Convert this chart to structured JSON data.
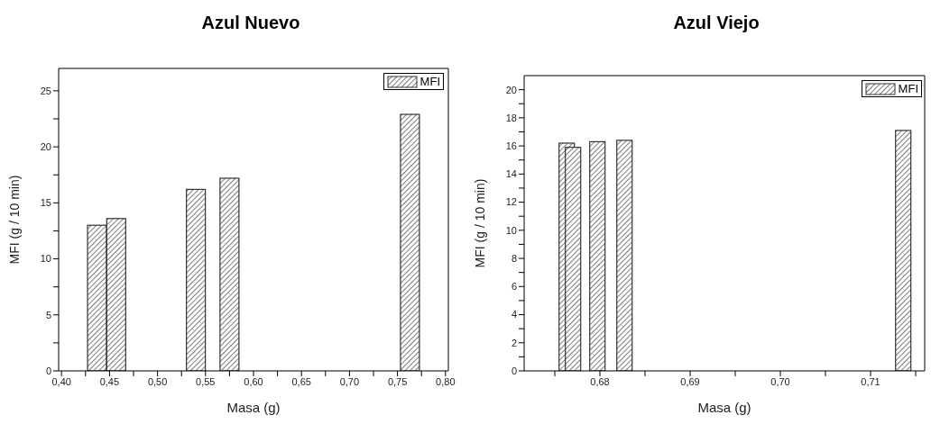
{
  "chart_data": [
    {
      "type": "bar",
      "title": "Azul Nuevo",
      "xlabel": "Masa (g)",
      "ylabel": "MFI (g / 10 min)",
      "x": [
        0.437,
        0.457,
        0.54,
        0.575,
        0.763
      ],
      "series": [
        {
          "name": "MFI",
          "color": "#333333",
          "values": [
            13.0,
            13.6,
            16.2,
            17.2,
            22.9
          ]
        }
      ],
      "xlim": [
        0.397,
        0.803
      ],
      "xticks": [
        {
          "value": 0.4,
          "label": "0,40"
        },
        {
          "value": 0.425,
          "label": null
        },
        {
          "value": 0.45,
          "label": "0,45"
        },
        {
          "value": 0.475,
          "label": null
        },
        {
          "value": 0.5,
          "label": "0,50"
        },
        {
          "value": 0.525,
          "label": null
        },
        {
          "value": 0.55,
          "label": "0,55"
        },
        {
          "value": 0.575,
          "label": null
        },
        {
          "value": 0.6,
          "label": "0,60"
        },
        {
          "value": 0.625,
          "label": null
        },
        {
          "value": 0.65,
          "label": "0,65"
        },
        {
          "value": 0.675,
          "label": null
        },
        {
          "value": 0.7,
          "label": "0,70"
        },
        {
          "value": 0.725,
          "label": null
        },
        {
          "value": 0.75,
          "label": "0,75"
        },
        {
          "value": 0.775,
          "label": null
        },
        {
          "value": 0.8,
          "label": "0,80"
        }
      ],
      "ylim": [
        0,
        27
      ],
      "yticks": [
        0,
        {
          "value": 2.5,
          "label": null
        },
        5,
        {
          "value": 7.5,
          "label": null
        },
        10,
        {
          "value": 12.5,
          "label": null
        },
        15,
        {
          "value": 17.5,
          "label": null
        },
        20,
        {
          "value": 22.5,
          "label": null
        },
        25
      ],
      "legend": "top right"
    },
    {
      "type": "bar",
      "title": "Azul Viejo",
      "xlabel": "Masa (g)",
      "ylabel": "MFI (g / 10 min)",
      "x": [
        0.6763,
        0.677,
        0.6797,
        0.6827,
        0.7136
      ],
      "series": [
        {
          "name": "MFI",
          "color": "#333333",
          "values": [
            16.2,
            15.9,
            16.3,
            16.4,
            17.1
          ]
        }
      ],
      "xlim": [
        0.6716,
        0.716
      ],
      "xticks": [
        {
          "value": 0.675,
          "label": null
        },
        {
          "value": 0.68,
          "label": "0,68"
        },
        {
          "value": 0.685,
          "label": null
        },
        {
          "value": 0.69,
          "label": "0,69"
        },
        {
          "value": 0.695,
          "label": null
        },
        {
          "value": 0.7,
          "label": "0,70"
        },
        {
          "value": 0.705,
          "label": null
        },
        {
          "value": 0.71,
          "label": "0,71"
        },
        {
          "value": 0.715,
          "label": null
        }
      ],
      "ylim": [
        0,
        21
      ],
      "yticks": [
        0,
        {
          "value": 1,
          "label": null
        },
        2,
        {
          "value": 3,
          "label": null
        },
        4,
        {
          "value": 5,
          "label": null
        },
        6,
        {
          "value": 7,
          "label": null
        },
        8,
        {
          "value": 9,
          "label": null
        },
        10,
        {
          "value": 11,
          "label": null
        },
        12,
        {
          "value": 13,
          "label": null
        },
        14,
        {
          "value": 15,
          "label": null
        },
        16,
        {
          "value": 17,
          "label": null
        },
        18,
        {
          "value": 19,
          "label": null
        },
        20
      ],
      "legend": "top right"
    }
  ]
}
